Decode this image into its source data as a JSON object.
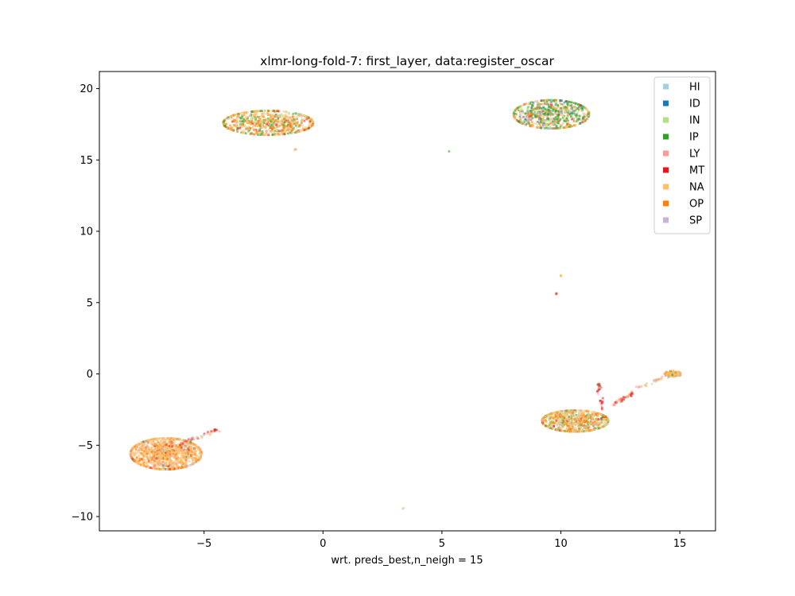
{
  "chart_data": {
    "type": "scatter",
    "title": "xlmr-long-fold-7: first_layer, data:register_oscar",
    "xlabel": "wrt. preds_best,n_neigh = 15",
    "ylabel": "",
    "xlim": [
      -9.4,
      16.5
    ],
    "ylim": [
      -11,
      21.2
    ],
    "xticks": [
      -5,
      0,
      5,
      10,
      15
    ],
    "yticks": [
      -10,
      -5,
      0,
      5,
      10,
      15,
      20
    ],
    "xtick_labels": [
      "−5",
      "0",
      "5",
      "10",
      "15"
    ],
    "ytick_labels": [
      "−10",
      "−5",
      "0",
      "5",
      "10",
      "15",
      "20"
    ],
    "grid": false,
    "legend_position": "top-right",
    "series": [
      {
        "name": "HI",
        "color": "#a6cee3"
      },
      {
        "name": "ID",
        "color": "#1f78b4"
      },
      {
        "name": "IN",
        "color": "#b2df8a"
      },
      {
        "name": "IP",
        "color": "#33a02c"
      },
      {
        "name": "LY",
        "color": "#fb9a99"
      },
      {
        "name": "MT",
        "color": "#e31a1c"
      },
      {
        "name": "NA",
        "color": "#fdbf6f"
      },
      {
        "name": "OP",
        "color": "#ff7f00"
      },
      {
        "name": "SP",
        "color": "#cab2d6"
      }
    ],
    "clusters": [
      {
        "center": [
          -2.3,
          17.6
        ],
        "spread": [
          1.9,
          0.85
        ],
        "count": 700,
        "weights": {
          "HI": 1,
          "ID": 1,
          "IN": 10,
          "IP": 16,
          "LY": 3,
          "MT": 4,
          "NA": 38,
          "OP": 25,
          "SP": 2
        }
      },
      {
        "center": [
          9.6,
          18.2
        ],
        "spread": [
          1.6,
          1.0
        ],
        "count": 650,
        "weights": {
          "HI": 4,
          "ID": 5,
          "IN": 14,
          "IP": 32,
          "LY": 3,
          "MT": 5,
          "NA": 17,
          "OP": 18,
          "SP": 2
        }
      },
      {
        "center": [
          -6.6,
          -5.6
        ],
        "spread": [
          1.5,
          1.1
        ],
        "count": 1200,
        "weights": {
          "HI": 2,
          "ID": 1,
          "IN": 2,
          "IP": 1,
          "LY": 6,
          "MT": 3,
          "NA": 65,
          "OP": 18,
          "SP": 2
        }
      },
      {
        "center": [
          10.6,
          -3.3
        ],
        "spread": [
          1.4,
          0.75
        ],
        "count": 750,
        "weights": {
          "HI": 2,
          "ID": 1,
          "IN": 16,
          "IP": 10,
          "LY": 5,
          "MT": 4,
          "NA": 37,
          "OP": 23,
          "SP": 2
        }
      },
      {
        "center": [
          14.7,
          0.0
        ],
        "spread": [
          0.35,
          0.2
        ],
        "count": 90,
        "weights": {
          "HI": 1,
          "ID": 0,
          "IN": 5,
          "IP": 8,
          "LY": 2,
          "MT": 2,
          "NA": 50,
          "OP": 30,
          "SP": 1
        }
      }
    ],
    "trails": [
      {
        "from": [
          -6.0,
          -4.9
        ],
        "to": [
          -4.4,
          -3.9
        ],
        "count": 45,
        "weights": {
          "LY": 5,
          "MT": 4,
          "NA": 3,
          "HI": 1
        }
      },
      {
        "from": [
          12.2,
          -2.2
        ],
        "to": [
          13.0,
          -1.3
        ],
        "count": 40,
        "weights": {
          "MT": 6,
          "LY": 4,
          "NA": 2
        }
      },
      {
        "from": [
          13.2,
          -1.0
        ],
        "to": [
          14.5,
          -0.1
        ],
        "count": 30,
        "weights": {
          "LY": 3,
          "NA": 3,
          "HI": 1
        }
      },
      {
        "from": [
          11.6,
          -0.5
        ],
        "to": [
          11.7,
          -2.5
        ],
        "count": 25,
        "weights": {
          "MT": 7,
          "IP": 2,
          "LY": 2
        }
      }
    ],
    "isolated_points": [
      {
        "x": -1.2,
        "y": 15.7,
        "series": "NA"
      },
      {
        "x": -1.15,
        "y": 15.75,
        "series": "OP"
      },
      {
        "x": 5.3,
        "y": 15.6,
        "series": "IP"
      },
      {
        "x": 10.0,
        "y": 6.9,
        "series": "OP"
      },
      {
        "x": 10.0,
        "y": 6.85,
        "series": "NA"
      },
      {
        "x": 9.8,
        "y": 5.6,
        "series": "MT"
      },
      {
        "x": 9.82,
        "y": 5.65,
        "series": "MT"
      },
      {
        "x": 3.4,
        "y": -9.4,
        "series": "IN"
      },
      {
        "x": 3.35,
        "y": -9.45,
        "series": "IN"
      }
    ]
  }
}
